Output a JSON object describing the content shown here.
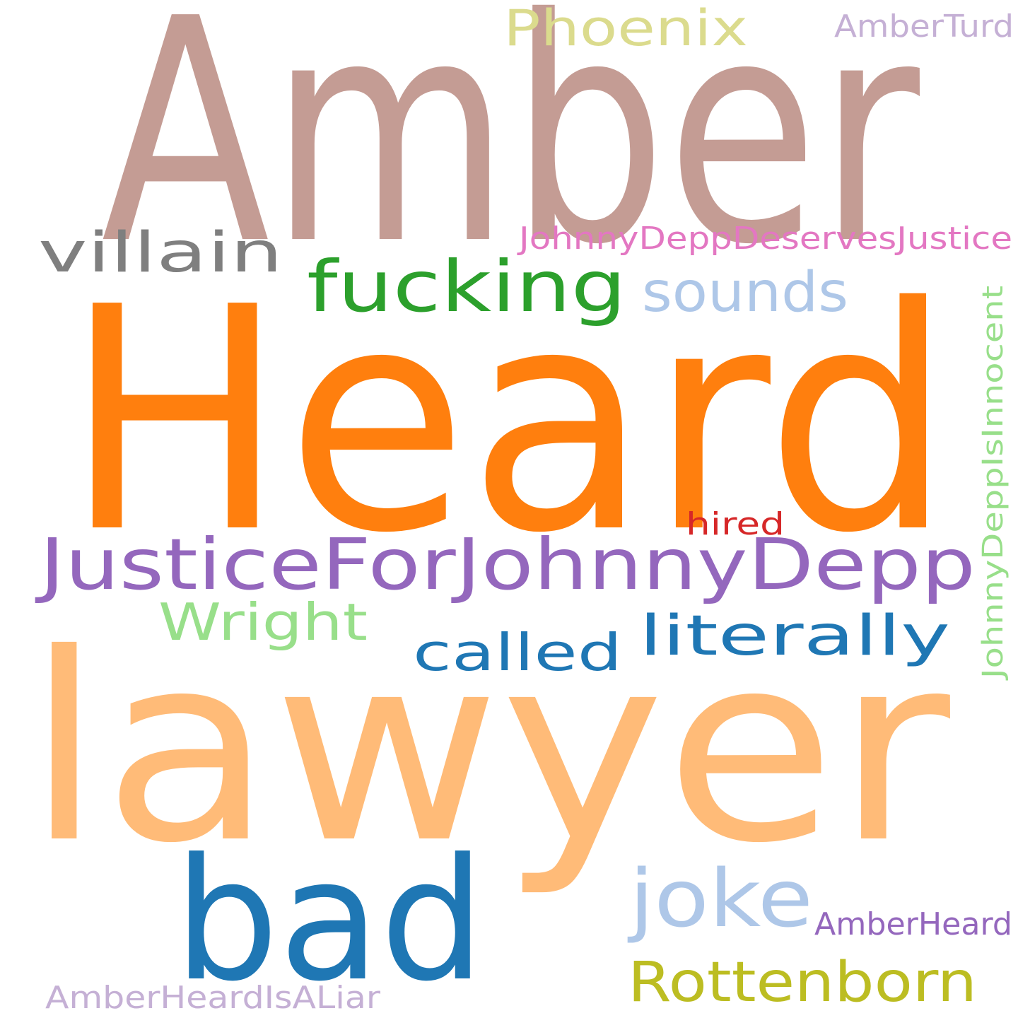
{
  "colors": {
    "background": "#ffffff"
  },
  "words": [
    {
      "id": "amber",
      "text": "Amber",
      "color": "#c49c94"
    },
    {
      "id": "heard",
      "text": "Heard",
      "color": "#ff7f0e"
    },
    {
      "id": "lawyer",
      "text": "lawyer",
      "color": "#ffbb78"
    },
    {
      "id": "bad",
      "text": "bad",
      "color": "#1f77b4"
    },
    {
      "id": "justice-for-johnny-depp",
      "text": "JusticeForJohnnyDepp",
      "color": "#9467bd"
    },
    {
      "id": "fucking",
      "text": "fucking",
      "color": "#2ca02c"
    },
    {
      "id": "villain",
      "text": "villain",
      "color": "#7f7f7f"
    },
    {
      "id": "sounds",
      "text": "sounds",
      "color": "#aec7e8"
    },
    {
      "id": "phoenix",
      "text": "Phoenix",
      "color": "#dbdb8d"
    },
    {
      "id": "amber-turd",
      "text": "AmberTurd",
      "color": "#c5b0d5"
    },
    {
      "id": "johnny-depp-deserves-justice",
      "text": "JohnnyDeppDeservesJustice",
      "color": "#e377c2"
    },
    {
      "id": "johnny-depp-is-innocent",
      "text": "JohnnyDeppIsInnocent",
      "color": "#98df8a"
    },
    {
      "id": "hired",
      "text": "hired",
      "color": "#d62728"
    },
    {
      "id": "wright",
      "text": "Wright",
      "color": "#98df8a"
    },
    {
      "id": "called",
      "text": "called",
      "color": "#1f77b4"
    },
    {
      "id": "literally",
      "text": "literally",
      "color": "#1f77b4"
    },
    {
      "id": "joke",
      "text": "joke",
      "color": "#aec7e8"
    },
    {
      "id": "amber-heard",
      "text": "AmberHeard",
      "color": "#9467bd"
    },
    {
      "id": "rottenborn",
      "text": "Rottenborn",
      "color": "#bcbd22"
    },
    {
      "id": "amber-heard-is-a-liar",
      "text": "AmberHeardIsALiar",
      "color": "#c5b0d5"
    }
  ]
}
